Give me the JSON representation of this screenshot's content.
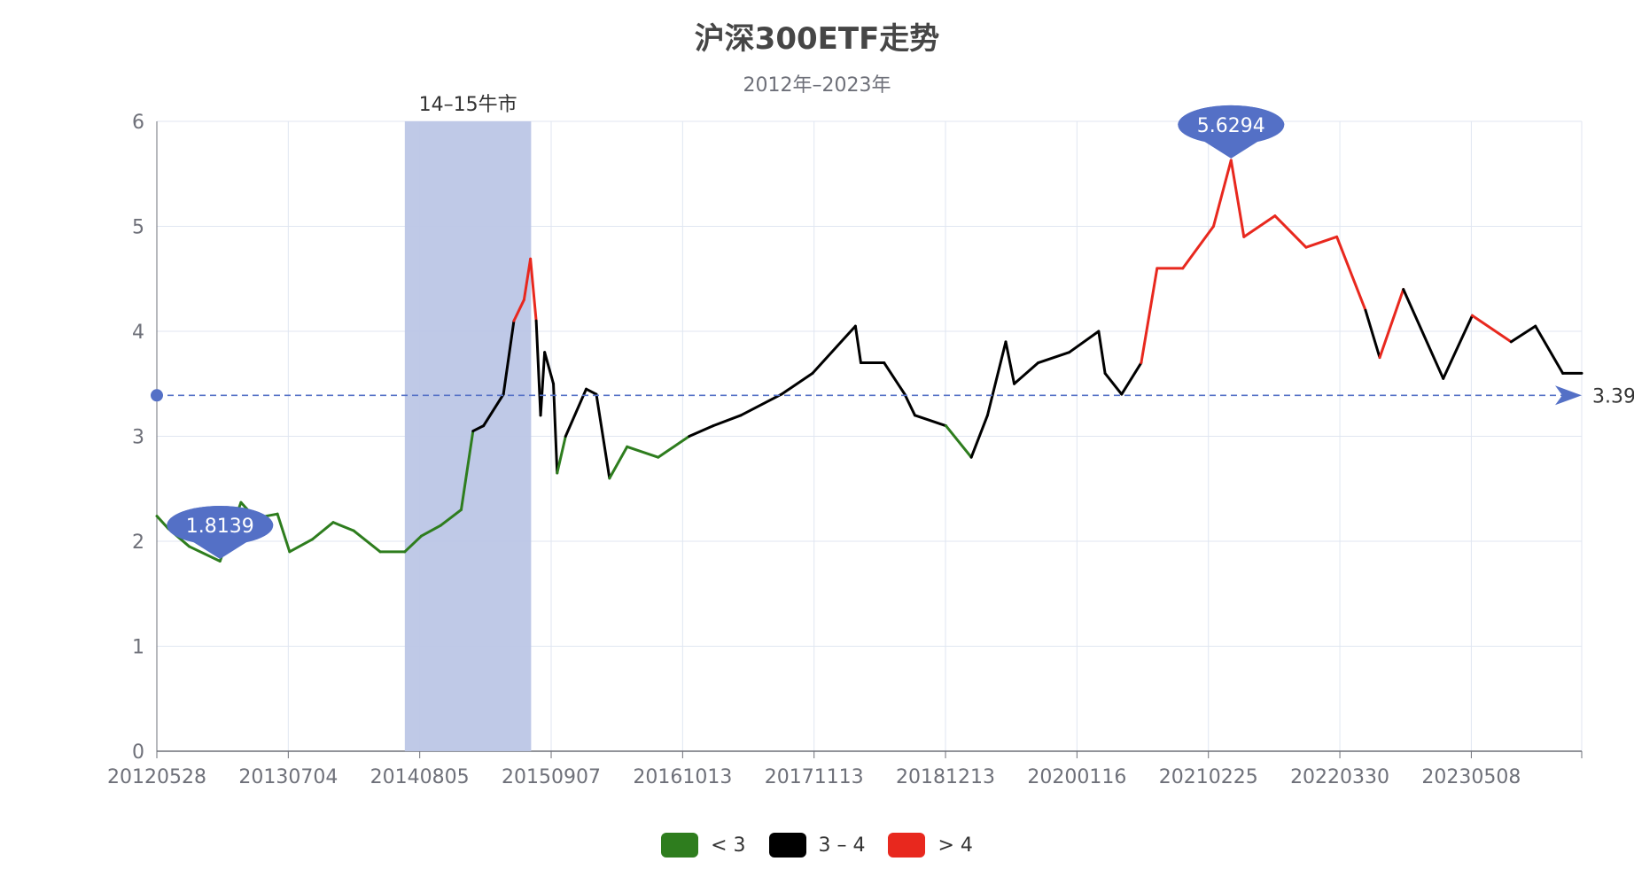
{
  "chart_data": {
    "type": "line",
    "title": "沪深300ETF走势",
    "subtitle": "2012年–2023年",
    "ylim": [
      0,
      6
    ],
    "y_ticks": [
      "0",
      "1",
      "2",
      "3",
      "4",
      "5",
      "6"
    ],
    "x_ticks": [
      "20120528",
      "20130704",
      "20140805",
      "20150907",
      "20161013",
      "20171113",
      "20181213",
      "20200116",
      "20210225",
      "20220330",
      "20230508"
    ],
    "grid": true,
    "legend_placement": "bottom-center",
    "visual_map": [
      {
        "label": "< 3",
        "color": "#2e7d1e",
        "lt": 3
      },
      {
        "label": "3 – 4",
        "color": "#000000",
        "gte": 3,
        "lt": 4
      },
      {
        "label": "> 4",
        "color": "#e8281e",
        "gte": 4
      }
    ],
    "mark_area": {
      "label": "14–15牛市",
      "from_date": "2014-06-01",
      "to_date": "2015-06-10",
      "color": "#bcc6e6"
    },
    "mark_points": [
      {
        "label": "1.8139",
        "date": "2012-12-01",
        "value": 1.8139
      },
      {
        "label": "5.6294",
        "date": "2021-02-10",
        "value": 5.6294
      }
    ],
    "mark_line": {
      "label": "3.39",
      "value": 3.39
    },
    "series": [
      {
        "values": [
          [
            "2012-05-28",
            2.24
          ],
          [
            "2012-07-01",
            2.12
          ],
          [
            "2012-09-01",
            1.95
          ],
          [
            "2012-12-01",
            1.81
          ],
          [
            "2013-02-01",
            2.37
          ],
          [
            "2013-03-15",
            2.22
          ],
          [
            "2013-05-20",
            2.26
          ],
          [
            "2013-06-25",
            1.9
          ],
          [
            "2013-09-01",
            2.02
          ],
          [
            "2013-11-01",
            2.18
          ],
          [
            "2014-01-01",
            2.1
          ],
          [
            "2014-03-20",
            1.9
          ],
          [
            "2014-06-01",
            1.9
          ],
          [
            "2014-07-20",
            2.05
          ],
          [
            "2014-09-15",
            2.15
          ],
          [
            "2014-11-15",
            2.3
          ],
          [
            "2014-12-20",
            3.05
          ],
          [
            "2015-01-20",
            3.1
          ],
          [
            "2015-03-20",
            3.4
          ],
          [
            "2015-04-20",
            4.1
          ],
          [
            "2015-05-20",
            4.3
          ],
          [
            "2015-06-08",
            4.69
          ],
          [
            "2015-06-25",
            4.1
          ],
          [
            "2015-07-08",
            3.2
          ],
          [
            "2015-07-20",
            3.8
          ],
          [
            "2015-08-15",
            3.5
          ],
          [
            "2015-08-26",
            2.65
          ],
          [
            "2015-09-20",
            3.0
          ],
          [
            "2015-11-20",
            3.45
          ],
          [
            "2015-12-20",
            3.4
          ],
          [
            "2016-01-28",
            2.6
          ],
          [
            "2016-03-20",
            2.9
          ],
          [
            "2016-06-20",
            2.8
          ],
          [
            "2016-09-20",
            3.0
          ],
          [
            "2016-11-30",
            3.1
          ],
          [
            "2017-02-20",
            3.2
          ],
          [
            "2017-06-20",
            3.4
          ],
          [
            "2017-09-20",
            3.6
          ],
          [
            "2018-01-25",
            4.05
          ],
          [
            "2018-02-10",
            3.7
          ],
          [
            "2018-04-20",
            3.7
          ],
          [
            "2018-06-20",
            3.4
          ],
          [
            "2018-07-20",
            3.2
          ],
          [
            "2018-10-20",
            3.1
          ],
          [
            "2019-01-03",
            2.8
          ],
          [
            "2019-02-20",
            3.2
          ],
          [
            "2019-04-15",
            3.9
          ],
          [
            "2019-05-10",
            3.5
          ],
          [
            "2019-07-20",
            3.7
          ],
          [
            "2019-10-20",
            3.8
          ],
          [
            "2020-01-15",
            4.0
          ],
          [
            "2020-02-03",
            3.6
          ],
          [
            "2020-03-23",
            3.4
          ],
          [
            "2020-05-20",
            3.7
          ],
          [
            "2020-07-06",
            4.6
          ],
          [
            "2020-09-20",
            4.6
          ],
          [
            "2020-12-20",
            5.0
          ],
          [
            "2021-02-10",
            5.63
          ],
          [
            "2021-03-20",
            4.9
          ],
          [
            "2021-06-20",
            5.1
          ],
          [
            "2021-09-20",
            4.8
          ],
          [
            "2021-12-20",
            4.9
          ],
          [
            "2022-03-15",
            4.2
          ],
          [
            "2022-04-26",
            3.75
          ],
          [
            "2022-07-05",
            4.4
          ],
          [
            "2022-10-31",
            3.55
          ],
          [
            "2023-01-25",
            4.15
          ],
          [
            "2023-05-20",
            3.9
          ],
          [
            "2023-07-31",
            4.05
          ],
          [
            "2023-10-20",
            3.6
          ],
          [
            "2023-12-15",
            3.6
          ]
        ]
      }
    ]
  },
  "legend": {
    "items": [
      {
        "label": "< 3",
        "color": "#2e7d1e"
      },
      {
        "label": "3 – 4",
        "color": "#000000"
      },
      {
        "label": "> 4",
        "color": "#e8281e"
      }
    ]
  }
}
